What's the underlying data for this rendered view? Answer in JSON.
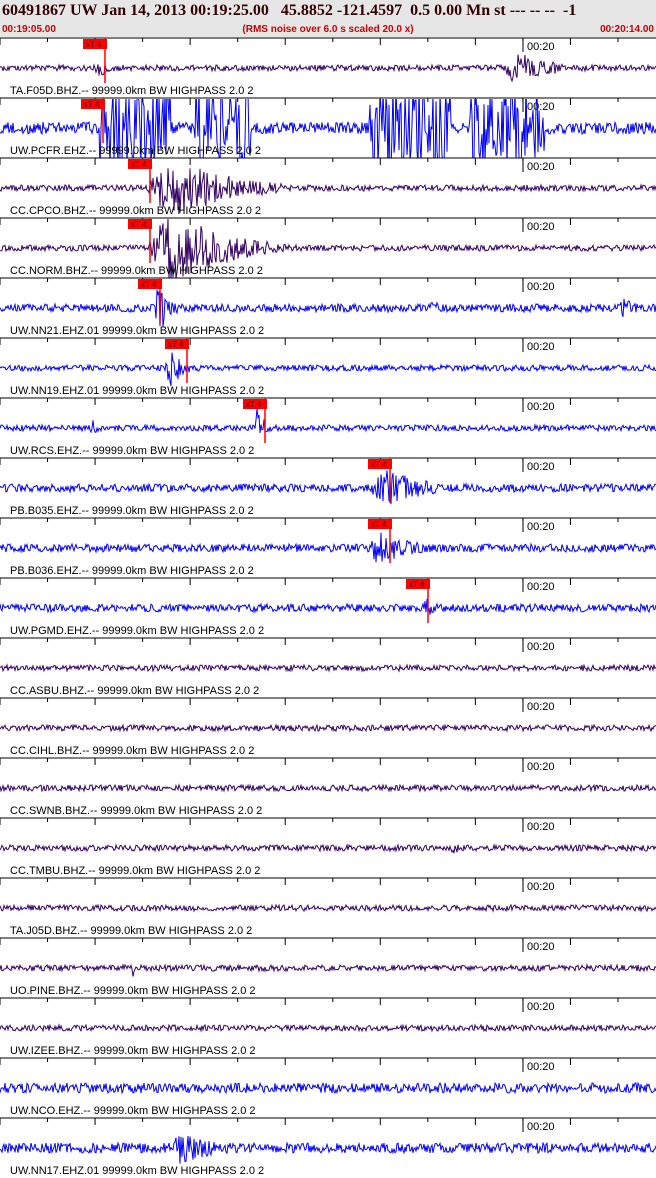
{
  "header": {
    "title": "60491867 UW Jan 14, 2013 00:19:25.00   45.8852 -121.4597  0.5 0.00 Mn st --- -- --  -1",
    "start_time": "00:19:05.00",
    "note": "(RMS noise over 6.0 s scaled 20.0 x)",
    "end_time": "00:20:14.00"
  },
  "minute_label": "00:20",
  "pick_label": "xT 4",
  "traces": [
    {
      "label": "TA.F05D.BHZ.-- 99999.0km BW  HIGHPASS  2.0  2",
      "color": "#330066"
    },
    {
      "label": "UW.PCFR.EHZ.-- 99999.0km BW  HIGHPASS  2.0  2",
      "color": "#0000ff"
    },
    {
      "label": "CC.CPCO.BHZ.-- 99999.0km BW  HIGHPASS  2.0  2",
      "color": "#330066"
    },
    {
      "label": "CC.NORM.BHZ.-- 99999.0km BW  HIGHPASS  2.0  2",
      "color": "#330066"
    },
    {
      "label": "UW.NN21.EHZ.01 99999.0km BW  HIGHPASS  2.0  2",
      "color": "#0000ff"
    },
    {
      "label": "UW.NN19.EHZ.01 99999.0km BW  HIGHPASS  2.0  2",
      "color": "#0000ff"
    },
    {
      "label": "UW.RCS.EHZ.-- 99999.0km BW  HIGHPASS  2.0  2",
      "color": "#0000ff"
    },
    {
      "label": "PB.B035.EHZ.-- 99999.0km BW  HIGHPASS  2.0  2",
      "color": "#0000ff"
    },
    {
      "label": "PB.B036.EHZ.-- 99999.0km BW  HIGHPASS  2.0  2",
      "color": "#0000ff"
    },
    {
      "label": "UW.PGMD.EHZ.-- 99999.0km BW  HIGHPASS  2.0  2",
      "color": "#0000ff"
    },
    {
      "label": "CC.ASBU.BHZ.-- 99999.0km BW  HIGHPASS  2.0  2",
      "color": "#330066"
    },
    {
      "label": "CC.CIHL.BHZ.-- 99999.0km BW  HIGHPASS  2.0  2",
      "color": "#330066"
    },
    {
      "label": "CC.SWNB.BHZ.-- 99999.0km BW  HIGHPASS  2.0  2",
      "color": "#330066"
    },
    {
      "label": "CC.TMBU.BHZ.-- 99999.0km BW  HIGHPASS  2.0  2",
      "color": "#330066"
    },
    {
      "label": "TA.J05D.BHZ.-- 99999.0km BW  HIGHPASS  2.0  2",
      "color": "#330066"
    },
    {
      "label": "UO.PINE.BHZ.-- 99999.0km BW  HIGHPASS  2.0  2",
      "color": "#330066"
    },
    {
      "label": "UW.IZEE.BHZ.-- 99999.0km BW  HIGHPASS  2.0  2",
      "color": "#330066"
    },
    {
      "label": "UW.NCO.EHZ.-- 99999.0km BW  HIGHPASS  2.0  2",
      "color": "#0000ff"
    },
    {
      "label": "UW.NN17.EHZ.01 99999.0km BW  HIGHPASS  2.0  2",
      "color": "#0000ff"
    }
  ]
}
